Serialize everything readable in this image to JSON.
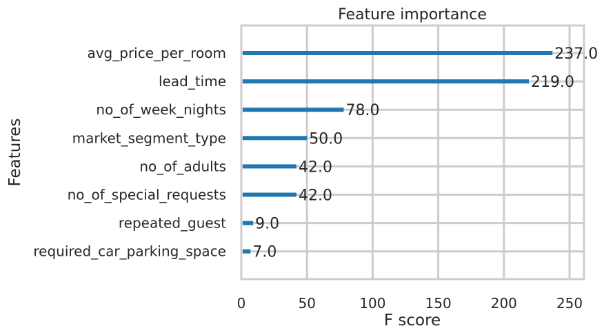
{
  "chart_data": {
    "type": "bar",
    "orientation": "horizontal",
    "title": "Feature importance",
    "xlabel": "F score",
    "ylabel": "Features",
    "categories": [
      "avg_price_per_room",
      "lead_time",
      "no_of_week_nights",
      "market_segment_type",
      "no_of_adults",
      "no_of_special_requests",
      "repeated_guest",
      "required_car_parking_space"
    ],
    "values": [
      237,
      219,
      78,
      50,
      42,
      42,
      9,
      7
    ],
    "value_labels": [
      "237.0",
      "219.0",
      "78.0",
      "50.0",
      "42.0",
      "42.0",
      "9.0",
      "7.0"
    ],
    "xlim": [
      0,
      261
    ],
    "xticks": [
      0,
      50,
      100,
      150,
      200,
      250
    ],
    "grid": true,
    "bar_color": "#1f77b4",
    "grid_color": "#cccccc"
  }
}
